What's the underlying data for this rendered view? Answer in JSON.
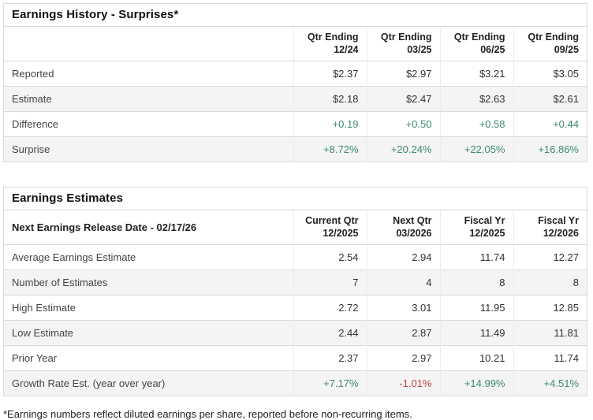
{
  "colors": {
    "positive": "#3d8b6d",
    "negative": "#c5403f",
    "row_alt": "#f4f4f4",
    "border": "#d9d9d9",
    "col_divider": "#ececec",
    "title_text": "#111111",
    "body_text": "#333333"
  },
  "footnote": "*Earnings numbers reflect diluted earnings per share, reported before non-recurring items.",
  "tables": [
    {
      "title": "Earnings History - Surprises*",
      "corner_label": "",
      "columns": [
        {
          "line1": "Qtr Ending",
          "line2": "12/24"
        },
        {
          "line1": "Qtr Ending",
          "line2": "03/25"
        },
        {
          "line1": "Qtr Ending",
          "line2": "06/25"
        },
        {
          "line1": "Qtr Ending",
          "line2": "09/25"
        }
      ],
      "rows": [
        {
          "label": "Reported",
          "cells": [
            {
              "text": "$2.37"
            },
            {
              "text": "$2.97"
            },
            {
              "text": "$3.21"
            },
            {
              "text": "$3.05"
            }
          ]
        },
        {
          "label": "Estimate",
          "cells": [
            {
              "text": "$2.18"
            },
            {
              "text": "$2.47"
            },
            {
              "text": "$2.63"
            },
            {
              "text": "$2.61"
            }
          ]
        },
        {
          "label": "Difference",
          "cells": [
            {
              "text": "+0.19",
              "tone": "positive"
            },
            {
              "text": "+0.50",
              "tone": "positive"
            },
            {
              "text": "+0.58",
              "tone": "positive"
            },
            {
              "text": "+0.44",
              "tone": "positive"
            }
          ]
        },
        {
          "label": "Surprise",
          "cells": [
            {
              "text": "+8.72%",
              "tone": "positive"
            },
            {
              "text": "+20.24%",
              "tone": "positive"
            },
            {
              "text": "+22.05%",
              "tone": "positive"
            },
            {
              "text": "+16.86%",
              "tone": "positive"
            }
          ]
        }
      ]
    },
    {
      "title": "Earnings Estimates",
      "corner_label": "Next Earnings Release Date - 02/17/26",
      "columns": [
        {
          "line1": "Current Qtr",
          "line2": "12/2025"
        },
        {
          "line1": "Next Qtr",
          "line2": "03/2026"
        },
        {
          "line1": "Fiscal Yr",
          "line2": "12/2025"
        },
        {
          "line1": "Fiscal Yr",
          "line2": "12/2026"
        }
      ],
      "rows": [
        {
          "label": "Average Earnings Estimate",
          "cells": [
            {
              "text": "2.54"
            },
            {
              "text": "2.94"
            },
            {
              "text": "11.74"
            },
            {
              "text": "12.27"
            }
          ]
        },
        {
          "label": "Number of Estimates",
          "cells": [
            {
              "text": "7"
            },
            {
              "text": "4"
            },
            {
              "text": "8"
            },
            {
              "text": "8"
            }
          ]
        },
        {
          "label": "High Estimate",
          "cells": [
            {
              "text": "2.72"
            },
            {
              "text": "3.01"
            },
            {
              "text": "11.95"
            },
            {
              "text": "12.85"
            }
          ]
        },
        {
          "label": "Low Estimate",
          "cells": [
            {
              "text": "2.44"
            },
            {
              "text": "2.87"
            },
            {
              "text": "11.49"
            },
            {
              "text": "11.81"
            }
          ]
        },
        {
          "label": "Prior Year",
          "cells": [
            {
              "text": "2.37"
            },
            {
              "text": "2.97"
            },
            {
              "text": "10.21"
            },
            {
              "text": "11.74"
            }
          ]
        },
        {
          "label": "Growth Rate Est. (year over year)",
          "cells": [
            {
              "text": "+7.17%",
              "tone": "positive"
            },
            {
              "text": "-1.01%",
              "tone": "negative"
            },
            {
              "text": "+14.99%",
              "tone": "positive"
            },
            {
              "text": "+4.51%",
              "tone": "positive"
            }
          ]
        }
      ]
    }
  ]
}
